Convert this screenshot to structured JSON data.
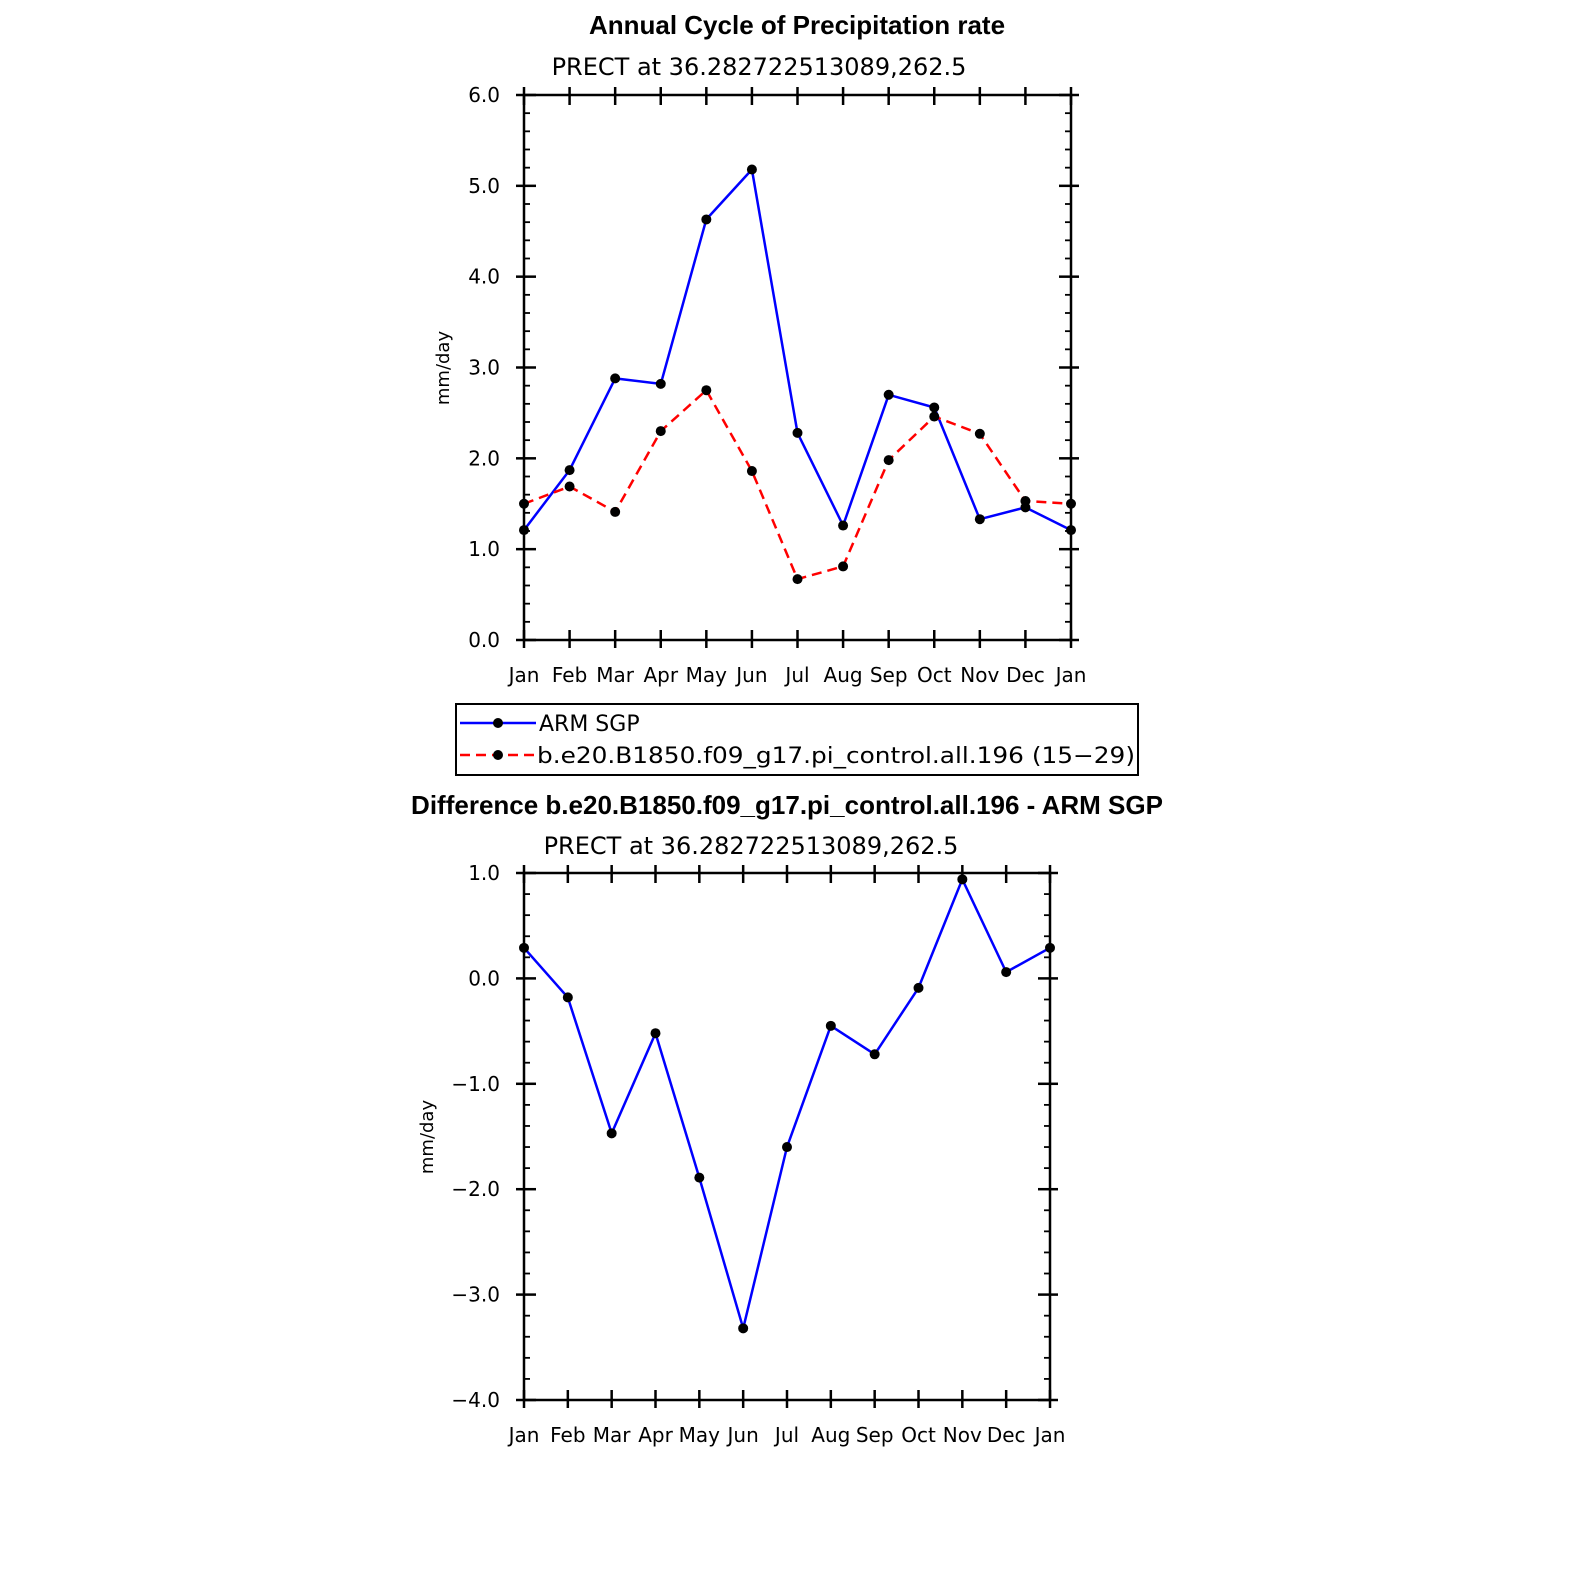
{
  "chart_data": [
    {
      "type": "line",
      "title": "Annual Cycle of Precipitation rate",
      "subtitle": "PRECT at 36.282722513089,262.5",
      "ylabel": "mm/day",
      "xlabel": "",
      "categories": [
        "Jan",
        "Feb",
        "Mar",
        "Apr",
        "May",
        "Jun",
        "Jul",
        "Aug",
        "Sep",
        "Oct",
        "Nov",
        "Dec",
        "Jan"
      ],
      "ylim": [
        0.0,
        6.0
      ],
      "yticks": [
        "0.0",
        "1.0",
        "2.0",
        "3.0",
        "4.0",
        "5.0",
        "6.0"
      ],
      "grid": false,
      "legend_position": "bottom",
      "series": [
        {
          "name": "ARM SGP",
          "color": "#0000ff",
          "dash": "solid",
          "values": [
            1.21,
            1.87,
            2.88,
            2.82,
            4.63,
            5.18,
            2.28,
            1.26,
            2.7,
            2.56,
            1.33,
            1.46,
            1.21
          ]
        },
        {
          "name": "b.e20.B1850.f09_g17.pi_control.all.196 (15−29)",
          "color": "#ff0000",
          "dash": "dashed",
          "values": [
            1.5,
            1.69,
            1.41,
            2.3,
            2.75,
            1.86,
            0.67,
            0.81,
            1.98,
            2.46,
            2.27,
            1.53,
            1.5
          ]
        }
      ]
    },
    {
      "type": "line",
      "title": "Difference b.e20.B1850.f09_g17.pi_control.all.196 - ARM SGP",
      "subtitle": "PRECT at 36.282722513089,262.5",
      "ylabel": "mm/day",
      "xlabel": "",
      "categories": [
        "Jan",
        "Feb",
        "Mar",
        "Apr",
        "May",
        "Jun",
        "Jul",
        "Aug",
        "Sep",
        "Oct",
        "Nov",
        "Dec",
        "Jan"
      ],
      "ylim": [
        -4.0,
        1.0
      ],
      "yticks": [
        "−4.0",
        "−3.0",
        "−2.0",
        "−1.0",
        "0.0",
        "1.0"
      ],
      "grid": false,
      "series": [
        {
          "color": "#0000ff",
          "dash": "solid",
          "values": [
            0.29,
            -0.18,
            -1.47,
            -0.52,
            -1.89,
            -3.32,
            -1.6,
            -0.45,
            -0.72,
            -0.09,
            0.94,
            0.06,
            0.29
          ]
        }
      ]
    }
  ]
}
